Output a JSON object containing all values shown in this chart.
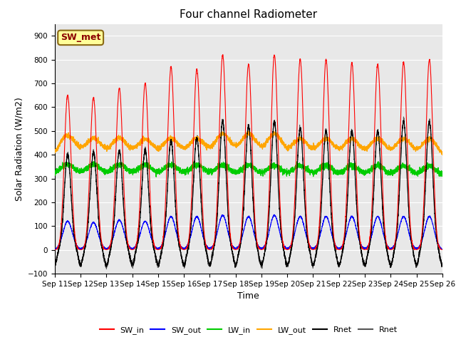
{
  "title": "Four channel Radiometer",
  "xlabel": "Time",
  "ylabel": "Solar Radiation (W/m2)",
  "ylim": [
    -100,
    950
  ],
  "yticks": [
    -100,
    0,
    100,
    200,
    300,
    400,
    500,
    600,
    700,
    800,
    900
  ],
  "xtick_labels": [
    "Sep 11",
    "Sep 12",
    "Sep 13",
    "Sep 14",
    "Sep 15",
    "Sep 16",
    "Sep 17",
    "Sep 18",
    "Sep 19",
    "Sep 20",
    "Sep 21",
    "Sep 22",
    "Sep 23",
    "Sep 24",
    "Sep 25",
    "Sep 26"
  ],
  "annotation_text": "SW_met",
  "annotation_color": "#8B0000",
  "annotation_bg": "#FFFF99",
  "annotation_border": "#8B6914",
  "colors": {
    "SW_in": "#FF0000",
    "SW_out": "#0000FF",
    "LW_in": "#00CC00",
    "LW_out": "#FFA500",
    "Rnet_black": "#000000",
    "Rnet_dark": "#555555"
  },
  "legend_entries": [
    "SW_in",
    "SW_out",
    "LW_in",
    "LW_out",
    "Rnet",
    "Rnet"
  ],
  "legend_colors": [
    "#FF0000",
    "#0000FF",
    "#00CC00",
    "#FFA500",
    "#000000",
    "#555555"
  ],
  "bg_color": "#E8E8E8",
  "num_days": 15,
  "day_start": 11,
  "day_end": 26
}
